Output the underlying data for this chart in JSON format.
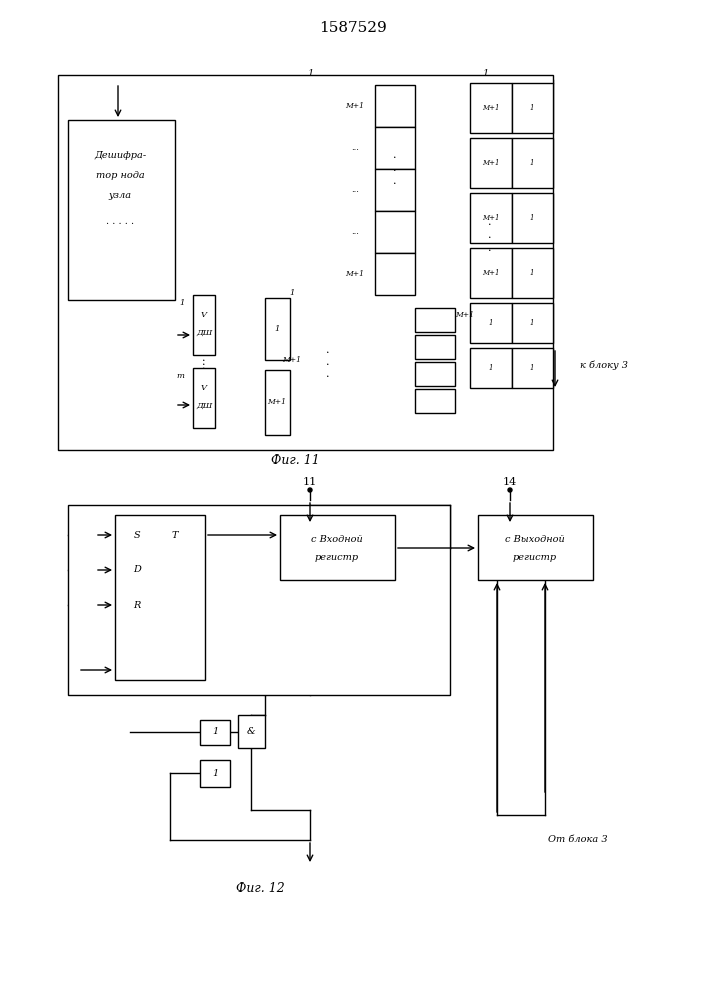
{
  "title": "1587529",
  "fig11_label": "Фиг. 11",
  "fig12_label": "Фиг. 12",
  "bg_color": "#ffffff",
  "line_color": "#000000",
  "text_color": "#000000"
}
